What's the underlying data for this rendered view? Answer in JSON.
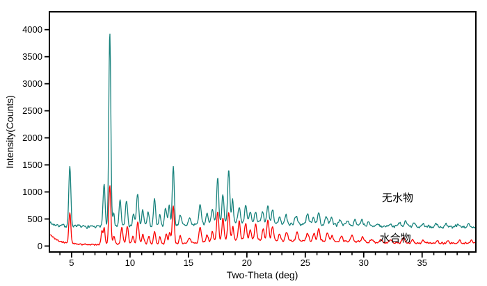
{
  "chart_data": {
    "type": "line",
    "title": "",
    "xlabel": "Two-Theta (deg)",
    "ylabel": "Intensity(Counts)",
    "xlim": [
      3.1,
      39.6
    ],
    "ylim": [
      -110,
      4330
    ],
    "x_major_ticks": [
      5,
      10,
      15,
      20,
      25,
      30,
      35
    ],
    "x_minor_tick_step": 1,
    "y_major_ticks": [
      0,
      500,
      1000,
      1500,
      2000,
      2500,
      3000,
      3500,
      4000
    ],
    "grid": false,
    "legend_position": "inline-annotations",
    "frame_color": "#000000",
    "series": [
      {
        "name": "无水物",
        "color": "#17827c",
        "label_color": "#2f9a94",
        "label_anchor": {
          "x": 32.9,
          "y": 825
        },
        "noise_amp": 14,
        "baseline_points": [
          [
            3.1,
            440
          ],
          [
            3.4,
            402
          ],
          [
            4.0,
            380
          ],
          [
            5.0,
            368
          ],
          [
            6.0,
            357
          ],
          [
            7.0,
            354
          ],
          [
            8.0,
            358
          ],
          [
            9.0,
            354
          ],
          [
            10.0,
            362
          ],
          [
            11.0,
            362
          ],
          [
            12.0,
            364
          ],
          [
            13.0,
            372
          ],
          [
            14.0,
            378
          ],
          [
            15.0,
            386
          ],
          [
            16.0,
            400
          ],
          [
            17.0,
            425
          ],
          [
            18.0,
            445
          ],
          [
            19.0,
            452
          ],
          [
            20.0,
            446
          ],
          [
            21.0,
            440
          ],
          [
            22.0,
            425
          ],
          [
            23.0,
            408
          ],
          [
            24.0,
            400
          ],
          [
            25.0,
            402
          ],
          [
            26.0,
            404
          ],
          [
            27.0,
            398
          ],
          [
            28.0,
            390
          ],
          [
            29.0,
            382
          ],
          [
            30.0,
            372
          ],
          [
            31.0,
            362
          ],
          [
            32.0,
            358
          ],
          [
            33.0,
            358
          ],
          [
            34.0,
            356
          ],
          [
            35.0,
            352
          ],
          [
            36.0,
            352
          ],
          [
            37.0,
            348
          ],
          [
            38.0,
            348
          ],
          [
            39.6,
            350
          ]
        ],
        "peaks": [
          [
            4.85,
            1110,
            0.085
          ],
          [
            7.78,
            800,
            0.09
          ],
          [
            8.27,
            3590,
            0.085
          ],
          [
            8.6,
            260,
            0.07
          ],
          [
            9.15,
            480,
            0.09
          ],
          [
            9.7,
            475,
            0.09
          ],
          [
            10.3,
            200,
            0.09
          ],
          [
            10.65,
            580,
            0.1
          ],
          [
            11.1,
            300,
            0.09
          ],
          [
            11.55,
            250,
            0.09
          ],
          [
            12.1,
            510,
            0.09
          ],
          [
            12.55,
            220,
            0.08
          ],
          [
            13.05,
            340,
            0.09
          ],
          [
            13.35,
            380,
            0.08
          ],
          [
            13.7,
            1080,
            0.085
          ],
          [
            14.3,
            210,
            0.09
          ],
          [
            15.1,
            130,
            0.1
          ],
          [
            16.0,
            340,
            0.11
          ],
          [
            16.6,
            190,
            0.09
          ],
          [
            17.05,
            240,
            0.09
          ],
          [
            17.5,
            830,
            0.085
          ],
          [
            17.95,
            520,
            0.085
          ],
          [
            18.45,
            950,
            0.09
          ],
          [
            18.78,
            430,
            0.07
          ],
          [
            19.35,
            290,
            0.09
          ],
          [
            19.9,
            290,
            0.09
          ],
          [
            20.3,
            190,
            0.08
          ],
          [
            20.75,
            200,
            0.09
          ],
          [
            21.35,
            180,
            0.09
          ],
          [
            21.8,
            300,
            0.09
          ],
          [
            22.2,
            240,
            0.09
          ],
          [
            22.8,
            130,
            0.09
          ],
          [
            23.35,
            160,
            0.11
          ],
          [
            24.2,
            165,
            0.11
          ],
          [
            25.2,
            185,
            0.11
          ],
          [
            25.7,
            150,
            0.09
          ],
          [
            26.15,
            195,
            0.09
          ],
          [
            26.8,
            145,
            0.1
          ],
          [
            27.25,
            155,
            0.09
          ],
          [
            28.0,
            95,
            0.11
          ],
          [
            28.65,
            85,
            0.11
          ],
          [
            29.25,
            115,
            0.1
          ],
          [
            29.85,
            95,
            0.1
          ],
          [
            30.45,
            70,
            0.11
          ],
          [
            31.2,
            60,
            0.11
          ],
          [
            32.2,
            60,
            0.11
          ],
          [
            33.05,
            65,
            0.1
          ],
          [
            33.6,
            115,
            0.1
          ],
          [
            34.35,
            75,
            0.11
          ],
          [
            35.05,
            60,
            0.11
          ],
          [
            36.2,
            55,
            0.11
          ],
          [
            37.05,
            60,
            0.11
          ],
          [
            38.05,
            50,
            0.11
          ],
          [
            39.0,
            55,
            0.11
          ]
        ]
      },
      {
        "name": "水合物",
        "color": "#fb0200",
        "label_color": "#ef4b45",
        "label_anchor": {
          "x": 32.7,
          "y": 80
        },
        "noise_amp": 11,
        "baseline_points": [
          [
            3.1,
            215
          ],
          [
            3.5,
            135
          ],
          [
            4.1,
            75
          ],
          [
            5.0,
            48
          ],
          [
            5.8,
            32
          ],
          [
            7.0,
            30
          ],
          [
            8.0,
            38
          ],
          [
            9.0,
            40
          ],
          [
            10.0,
            44
          ],
          [
            11.0,
            40
          ],
          [
            12.0,
            36
          ],
          [
            13.0,
            40
          ],
          [
            14.0,
            46
          ],
          [
            15.0,
            52
          ],
          [
            16.0,
            62
          ],
          [
            17.0,
            88
          ],
          [
            18.0,
            108
          ],
          [
            19.0,
            118
          ],
          [
            20.0,
            118
          ],
          [
            21.0,
            115
          ],
          [
            22.0,
            108
          ],
          [
            23.0,
            100
          ],
          [
            24.0,
            98
          ],
          [
            25.0,
            98
          ],
          [
            26.0,
            102
          ],
          [
            27.0,
            97
          ],
          [
            28.0,
            88
          ],
          [
            29.0,
            82
          ],
          [
            30.0,
            72
          ],
          [
            31.0,
            62
          ],
          [
            32.0,
            58
          ],
          [
            33.0,
            58
          ],
          [
            34.0,
            57
          ],
          [
            35.0,
            53
          ],
          [
            36.0,
            52
          ],
          [
            37.0,
            48
          ],
          [
            38.0,
            48
          ],
          [
            39.6,
            58
          ]
        ],
        "peaks": [
          [
            4.85,
            575,
            0.085
          ],
          [
            7.6,
            230,
            0.08
          ],
          [
            7.8,
            300,
            0.07
          ],
          [
            8.27,
            1090,
            0.085
          ],
          [
            8.62,
            150,
            0.07
          ],
          [
            9.3,
            330,
            0.09
          ],
          [
            9.77,
            330,
            0.09
          ],
          [
            10.25,
            140,
            0.08
          ],
          [
            10.67,
            400,
            0.09
          ],
          [
            11.1,
            170,
            0.09
          ],
          [
            11.6,
            140,
            0.09
          ],
          [
            12.1,
            240,
            0.09
          ],
          [
            12.55,
            130,
            0.08
          ],
          [
            13.1,
            190,
            0.09
          ],
          [
            13.4,
            210,
            0.08
          ],
          [
            13.7,
            700,
            0.085
          ],
          [
            14.3,
            140,
            0.09
          ],
          [
            15.1,
            90,
            0.1
          ],
          [
            16.0,
            290,
            0.1
          ],
          [
            16.6,
            130,
            0.09
          ],
          [
            17.05,
            170,
            0.09
          ],
          [
            17.5,
            540,
            0.085
          ],
          [
            17.95,
            400,
            0.085
          ],
          [
            18.45,
            510,
            0.09
          ],
          [
            18.8,
            260,
            0.07
          ],
          [
            19.35,
            340,
            0.09
          ],
          [
            19.9,
            310,
            0.09
          ],
          [
            20.3,
            190,
            0.08
          ],
          [
            20.75,
            290,
            0.09
          ],
          [
            21.4,
            210,
            0.09
          ],
          [
            21.8,
            360,
            0.09
          ],
          [
            22.2,
            270,
            0.09
          ],
          [
            22.8,
            140,
            0.09
          ],
          [
            23.4,
            160,
            0.1
          ],
          [
            24.3,
            160,
            0.1
          ],
          [
            25.2,
            140,
            0.1
          ],
          [
            25.75,
            130,
            0.09
          ],
          [
            26.15,
            200,
            0.09
          ],
          [
            26.9,
            140,
            0.1
          ],
          [
            27.3,
            110,
            0.09
          ],
          [
            28.1,
            95,
            0.1
          ],
          [
            29.0,
            115,
            0.1
          ],
          [
            29.9,
            95,
            0.1
          ],
          [
            30.7,
            65,
            0.1
          ],
          [
            31.5,
            55,
            0.1
          ],
          [
            32.3,
            55,
            0.1
          ],
          [
            33.4,
            95,
            0.1
          ],
          [
            34.2,
            65,
            0.1
          ],
          [
            35.1,
            55,
            0.1
          ],
          [
            36.3,
            45,
            0.1
          ],
          [
            37.2,
            45,
            0.1
          ],
          [
            38.2,
            45,
            0.1
          ],
          [
            39.2,
            55,
            0.1
          ]
        ]
      }
    ]
  }
}
